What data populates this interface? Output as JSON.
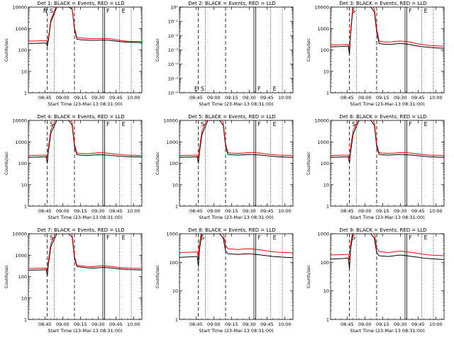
{
  "shared": {
    "xlabel": "Start Time (23-Mar-13 08:31:00)",
    "ylabel": "Counts/sec",
    "xticks": [
      "08:45",
      "09:00",
      "09:15",
      "09:30",
      "09:45",
      "10:00"
    ],
    "xtick_values": [
      45,
      60,
      75,
      90,
      105,
      120
    ],
    "xlim": [
      31,
      127
    ],
    "line_colors": {
      "events": "#000000",
      "lld": "#ff0000"
    },
    "markers": {
      "dashed": [
        47,
        70
      ],
      "solid": [
        94,
        95.5
      ],
      "dotted": [
        53,
        108,
        118
      ]
    }
  },
  "chart_data": [
    {
      "type": "line",
      "title": "Det 1: BLACK = Events, RED = LLD",
      "tag_labels": [
        "N",
        "S",
        "F",
        "E"
      ],
      "yticks": [
        "1",
        "10",
        "100",
        "1000",
        "10000"
      ],
      "ytick_values": [
        1,
        10,
        100,
        1000,
        10000
      ],
      "yscale": "log",
      "ylim": [
        1,
        10000
      ],
      "x": [
        31,
        40,
        45,
        46,
        47,
        48,
        50,
        55,
        60,
        65,
        68,
        70,
        72,
        75,
        80,
        85,
        90,
        95,
        100,
        105,
        110,
        115,
        120,
        127
      ],
      "series": [
        {
          "name": "Events",
          "values": [
            200,
            205,
            210,
            210,
            150,
            300,
            2000,
            10000,
            10000,
            10000,
            8000,
            900,
            320,
            300,
            290,
            280,
            285,
            290,
            280,
            260,
            240,
            230,
            225,
            220
          ]
        },
        {
          "name": "LLD",
          "values": [
            260,
            265,
            270,
            270,
            240,
            400,
            2600,
            12000,
            12000,
            12000,
            9000,
            1100,
            380,
            360,
            350,
            330,
            340,
            345,
            335,
            300,
            270,
            255,
            250,
            245
          ]
        }
      ]
    },
    {
      "type": "line",
      "title": "Det 2: BLACK = Events, RED = LLD",
      "tag_labels": [
        "E",
        "S",
        "F",
        "E"
      ],
      "yticks": [
        "10⁻⁶",
        "10⁻⁵",
        "10⁻⁴",
        "10⁻³",
        "10⁻²",
        "10⁻¹",
        "10⁰"
      ],
      "ytick_values": [
        1e-06,
        1e-05,
        0.0001,
        0.001,
        0.01,
        0.1,
        1
      ],
      "yscale": "log",
      "ylim": [
        1e-06,
        1
      ],
      "x": [],
      "series": [
        {
          "name": "Events",
          "values": []
        },
        {
          "name": "LLD",
          "values": []
        }
      ]
    },
    {
      "type": "line",
      "title": "Det 3: BLACK = Events, RED = LLD",
      "tag_labels": [
        "S",
        "F",
        "E"
      ],
      "yticks": [
        "1",
        "10",
        "100",
        "1000",
        "10000"
      ],
      "ytick_values": [
        1,
        10,
        100,
        1000,
        10000
      ],
      "yscale": "log",
      "ylim": [
        1,
        10000
      ],
      "x": [
        31,
        40,
        45,
        46,
        47,
        48,
        50,
        55,
        60,
        65,
        68,
        70,
        72,
        75,
        80,
        85,
        90,
        95,
        100,
        105,
        110,
        115,
        120,
        127
      ],
      "series": [
        {
          "name": "Events",
          "values": [
            140,
            145,
            150,
            150,
            60,
            600,
            10000,
            10000,
            10000,
            10000,
            6000,
            700,
            200,
            190,
            180,
            190,
            200,
            190,
            170,
            150,
            140,
            130,
            125,
            120
          ]
        },
        {
          "name": "LLD",
          "values": [
            170,
            175,
            180,
            180,
            120,
            900,
            14000,
            14000,
            14000,
            14000,
            8000,
            1000,
            260,
            240,
            230,
            250,
            260,
            250,
            220,
            190,
            175,
            160,
            155,
            150
          ]
        }
      ]
    },
    {
      "type": "line",
      "title": "Det 4: BLACK = Events, RED = LLD",
      "tag_labels": [
        "S",
        "F",
        "E"
      ],
      "yticks": [
        "1",
        "10",
        "100",
        "1000",
        "10000"
      ],
      "ytick_values": [
        1,
        10,
        100,
        1000,
        10000
      ],
      "yscale": "log",
      "ylim": [
        1,
        10000
      ],
      "x": [
        31,
        40,
        45,
        46,
        47,
        48,
        50,
        55,
        60,
        65,
        68,
        70,
        72,
        75,
        80,
        85,
        90,
        95,
        100,
        105,
        110,
        115,
        120,
        127
      ],
      "series": [
        {
          "name": "Events",
          "values": [
            190,
            195,
            200,
            200,
            100,
            400,
            2500,
            10000,
            10000,
            10000,
            6000,
            600,
            250,
            240,
            230,
            240,
            250,
            245,
            235,
            220,
            210,
            205,
            200,
            195
          ]
        },
        {
          "name": "LLD",
          "values": [
            230,
            235,
            240,
            240,
            180,
            600,
            3500,
            14000,
            14000,
            14000,
            8000,
            800,
            300,
            290,
            280,
            290,
            310,
            305,
            290,
            265,
            250,
            240,
            235,
            230
          ]
        }
      ]
    },
    {
      "type": "line",
      "title": "Det 5: BLACK = Events, RED = LLD",
      "tag_labels": [
        "S",
        "F",
        "E"
      ],
      "yticks": [
        "1",
        "10",
        "100",
        "1000",
        "10000"
      ],
      "ytick_values": [
        1,
        10,
        100,
        1000,
        10000
      ],
      "yscale": "log",
      "ylim": [
        1,
        10000
      ],
      "x": [
        31,
        40,
        45,
        46,
        47,
        48,
        50,
        55,
        60,
        65,
        68,
        70,
        72,
        75,
        80,
        85,
        90,
        95,
        100,
        105,
        110,
        115,
        120,
        127
      ],
      "series": [
        {
          "name": "Events",
          "values": [
            190,
            195,
            200,
            200,
            100,
            350,
            2200,
            10000,
            10000,
            10000,
            6000,
            600,
            260,
            250,
            240,
            250,
            260,
            250,
            240,
            225,
            210,
            200,
            195,
            190
          ]
        },
        {
          "name": "LLD",
          "values": [
            230,
            235,
            240,
            240,
            170,
            550,
            3200,
            14000,
            14000,
            14000,
            8000,
            800,
            310,
            300,
            290,
            300,
            320,
            310,
            295,
            270,
            250,
            240,
            235,
            230
          ]
        }
      ]
    },
    {
      "type": "line",
      "title": "Det 6: BLACK = Events, RED = LLD",
      "tag_labels": [
        "S",
        "F",
        "E"
      ],
      "yticks": [
        "1",
        "10",
        "100",
        "1000",
        "10000"
      ],
      "ytick_values": [
        1,
        10,
        100,
        1000,
        10000
      ],
      "yscale": "log",
      "ylim": [
        1,
        10000
      ],
      "x": [
        31,
        40,
        45,
        46,
        47,
        48,
        50,
        55,
        60,
        65,
        68,
        70,
        72,
        75,
        80,
        85,
        90,
        95,
        100,
        105,
        110,
        115,
        120,
        127
      ],
      "series": [
        {
          "name": "Events",
          "values": [
            190,
            195,
            200,
            200,
            100,
            350,
            2200,
            10000,
            10000,
            10000,
            6000,
            600,
            260,
            250,
            240,
            250,
            260,
            250,
            240,
            225,
            210,
            200,
            195,
            190
          ]
        },
        {
          "name": "LLD",
          "values": [
            230,
            235,
            240,
            240,
            170,
            550,
            3200,
            14000,
            14000,
            14000,
            8000,
            800,
            310,
            300,
            290,
            300,
            320,
            310,
            295,
            270,
            250,
            240,
            235,
            230
          ]
        }
      ]
    },
    {
      "type": "line",
      "title": "Det 7: BLACK = Events, RED = LLD",
      "tag_labels": [
        "S",
        "F",
        "E"
      ],
      "yticks": [
        "1",
        "10",
        "100",
        "1000",
        "10000"
      ],
      "ytick_values": [
        1,
        10,
        100,
        1000,
        10000
      ],
      "yscale": "log",
      "ylim": [
        1,
        10000
      ],
      "x": [
        31,
        40,
        45,
        46,
        47,
        48,
        50,
        55,
        60,
        65,
        68,
        70,
        72,
        75,
        80,
        85,
        90,
        95,
        100,
        105,
        110,
        115,
        120,
        127
      ],
      "series": [
        {
          "name": "Events",
          "values": [
            200,
            205,
            210,
            210,
            110,
            400,
            2500,
            10000,
            10000,
            10000,
            7000,
            700,
            300,
            280,
            260,
            250,
            260,
            270,
            255,
            240,
            225,
            215,
            210,
            205
          ]
        },
        {
          "name": "LLD",
          "values": [
            240,
            245,
            250,
            250,
            190,
            600,
            3500,
            14000,
            14000,
            14000,
            9000,
            900,
            340,
            320,
            300,
            290,
            310,
            320,
            300,
            280,
            260,
            250,
            245,
            240
          ]
        }
      ]
    },
    {
      "type": "line",
      "title": "Det 8: BLACK = Events, RED = LLD",
      "tag_labels": [
        "S",
        "F",
        "E"
      ],
      "yticks": [
        "1",
        "10",
        "100",
        "1000"
      ],
      "ytick_values": [
        1,
        10,
        100,
        1000
      ],
      "yscale": "log",
      "ylim": [
        1,
        1000
      ],
      "x": [
        31,
        40,
        45,
        46,
        47,
        48,
        50,
        55,
        60,
        65,
        68,
        70,
        72,
        75,
        80,
        85,
        90,
        95,
        100,
        105,
        110,
        115,
        120,
        127
      ],
      "series": [
        {
          "name": "Events",
          "values": [
            150,
            155,
            160,
            160,
            70,
            300,
            1000,
            1000,
            1000,
            1000,
            700,
            250,
            200,
            195,
            190,
            195,
            200,
            190,
            180,
            170,
            160,
            155,
            150,
            145
          ]
        },
        {
          "name": "LLD",
          "values": [
            220,
            225,
            230,
            230,
            150,
            500,
            1400,
            1400,
            1400,
            1400,
            1000,
            400,
            300,
            290,
            280,
            290,
            300,
            285,
            270,
            250,
            235,
            225,
            220,
            215
          ]
        }
      ]
    },
    {
      "type": "line",
      "title": "Det 9: BLACK = Events, RED = LLD",
      "tag_labels": [
        "S",
        "F",
        "E"
      ],
      "yticks": [
        "1",
        "10",
        "100",
        "1000"
      ],
      "ytick_values": [
        1,
        10,
        100,
        1000
      ],
      "yscale": "log",
      "ylim": [
        1,
        1000
      ],
      "x": [
        31,
        40,
        45,
        46,
        47,
        48,
        50,
        55,
        60,
        65,
        68,
        70,
        72,
        75,
        80,
        85,
        90,
        95,
        100,
        105,
        110,
        115,
        120,
        127
      ],
      "series": [
        {
          "name": "Events",
          "values": [
            130,
            135,
            140,
            140,
            60,
            300,
            1000,
            1000,
            1000,
            1000,
            700,
            220,
            170,
            165,
            160,
            170,
            180,
            170,
            160,
            150,
            140,
            135,
            130,
            125
          ]
        },
        {
          "name": "LLD",
          "values": [
            180,
            185,
            190,
            190,
            120,
            450,
            1400,
            1400,
            1400,
            1400,
            1000,
            320,
            240,
            230,
            220,
            235,
            245,
            235,
            220,
            205,
            190,
            180,
            175,
            170
          ]
        }
      ]
    }
  ]
}
